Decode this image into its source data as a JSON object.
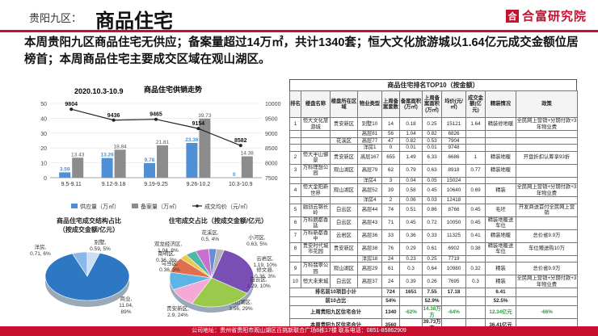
{
  "header": {
    "region": "贵阳九区：",
    "title": "商品住宅",
    "brand_logo": "合",
    "brand_name": "合富研究院"
  },
  "summary": "本周贵阳九区商品住宅无供应；备案量超过14万㎡，共计1340套；恒大文化旅游城以1.64亿元成交金额位居榜首；本周商品住宅主要成交区域在观山湖区。",
  "colors": {
    "brand": "#c8102e",
    "supply": "#4e8fd6",
    "sales": "#8c8c8c",
    "price": "#222222"
  },
  "bar_chart": {
    "title": "商品住宅供销走势",
    "date_label": "2020.10.3-10.9",
    "legend": {
      "supply": "供应量（万㎡）",
      "sales": "备案量（万㎡）",
      "price": "成交均价（元/㎡）"
    }
  },
  "pie_left": {
    "title_line1": "商品住宅成交结构占比",
    "title_line2": "（按成交金额/亿元）"
  },
  "pie_right": {
    "title": "住宅成交占比（按成交金额/亿元）"
  },
  "chart_data": [
    {
      "type": "bar",
      "title": "商品住宅供销走势",
      "categories": [
        "9.5-9.11",
        "9.12-9.18",
        "9.19-9.25",
        "9.26-10.2",
        "10.3-10.9"
      ],
      "series": [
        {
          "name": "供应量（万㎡）",
          "values": [
            3.59,
            13.26,
            9.78,
            23.36,
            0
          ],
          "labels": [
            "3.59",
            "13.26",
            "9.78",
            "23.36",
            "0"
          ]
        },
        {
          "name": "备案量（万㎡）",
          "values": [
            13.43,
            18.84,
            21.81,
            39.73,
            14.38
          ],
          "labels": [
            "13.43",
            "18.84",
            "21.81",
            "39.73",
            "14.38"
          ]
        },
        {
          "name": "成交均价（元/㎡）",
          "values": [
            9804,
            9436,
            9465,
            9154,
            8582
          ],
          "labels": [
            "9804",
            "9436",
            "9465",
            "9154",
            "8582"
          ],
          "axis": "right"
        }
      ],
      "yticks_left": [
        "0",
        "10",
        "20",
        "30",
        "40",
        "50"
      ],
      "yticks_right": [
        "7500",
        "8000",
        "8500",
        "9000",
        "9500",
        "10000"
      ],
      "ylim_left": [
        0,
        50
      ],
      "ylim_right": [
        7500,
        10000
      ]
    },
    {
      "type": "pie",
      "title": "商品住宅成交结构占比（按成交金额/亿元）",
      "slices": [
        {
          "name": "商业",
          "label_line1": "商业,",
          "label_line2": "11.04,",
          "label_line3": "89%",
          "value": 11.04,
          "color": "#2e78c3"
        },
        {
          "name": "洋房",
          "label_line1": "洋房,",
          "label_line2": "0.71, 6%",
          "value": 0.71,
          "color": "#8bb8e8"
        },
        {
          "name": "别墅",
          "label_line1": "别墅,",
          "label_line2": "0.59, 5%",
          "value": 0.59,
          "color": "#c9dff5"
        }
      ]
    },
    {
      "type": "pie",
      "title": "住宅成交占比（按成交金额/亿元）",
      "slices": [
        {
          "name": "观山湖区",
          "label_line1": "观山湖区,",
          "label_line2": "3.56, 29%",
          "value": 3.56,
          "color": "#7a4fb5"
        },
        {
          "name": "贵安新区",
          "label_line1": "贵安新区,",
          "label_line2": "2.9, 24%",
          "value": 2.9,
          "color": "#9bc94b"
        },
        {
          "name": "白云区",
          "label_line1": "白云区,",
          "label_line2": "1.29, 10%",
          "value": 1.29,
          "color": "#f4a9d6"
        },
        {
          "name": "云岩区",
          "label_line1": "云岩区,",
          "label_line2": "1.19, 10%",
          "value": 1.19,
          "color": "#5ab4e6"
        },
        {
          "name": "双龙经济区",
          "label_line1": "双龙经济区,",
          "label_line2": "1.04, 8%",
          "value": 1.04,
          "color": "#e06f4e"
        },
        {
          "name": "乌当区",
          "label_line1": "乌当区,",
          "label_line2": "0.36, 3%",
          "value": 0.36,
          "color": "#f2c84b"
        },
        {
          "name": "花溪区",
          "label_line1": "花溪区,",
          "label_line2": "0.5, 4%",
          "value": 0.5,
          "color": "#4cb8a9"
        },
        {
          "name": "小河区",
          "label_line1": "小河区,",
          "label_line2": "0.63, 5%",
          "value": 0.63,
          "color": "#c96fd0"
        },
        {
          "name": "南明区",
          "label_line1": "南明区,",
          "label_line2": "0.36, 3%",
          "value": 0.36,
          "color": "#6a8bd6"
        },
        {
          "name": "修文县",
          "label_line1": "修文县,",
          "label_line2": "0.36, 3%",
          "value": 0.36,
          "color": "#b5b5b5"
        }
      ]
    }
  ],
  "table": {
    "title": "商品住宅排名TOP10（按金额）",
    "headers": [
      "排名",
      "楼盘名称",
      "楼盘所在区域",
      "物业类型",
      "上周备案套数",
      "备案面积(万㎡)",
      "上周备案面积(万㎡)",
      "均价(元/㎡)",
      "成交金额(亿元)",
      "精装情况",
      "政策"
    ],
    "rows": [
      [
        "1",
        "恒大文化旅游城",
        "贵安新区",
        "别墅10",
        "14",
        "0.18",
        "0.25",
        "15121",
        "1.64",
        "精装修地暖",
        "全民网上营销+分期付款+3年物业费"
      ],
      [
        "",
        "",
        "",
        "高层81",
        "56",
        "1.04",
        "0.82",
        "6826",
        "",
        "",
        ""
      ],
      [
        "",
        "",
        "花溪区",
        "高层77",
        "47",
        "0.82",
        "0.53",
        "7904",
        "",
        "",
        ""
      ],
      [
        "",
        "",
        "",
        "洋房1",
        "0",
        "0.01",
        "0.01",
        "9748",
        "",
        "",
        ""
      ],
      [
        "2",
        "恒大半山御景",
        "贵安新区",
        "高层167",
        "655",
        "1.49",
        "6.33",
        "6686",
        "1",
        "精装地暖",
        "开盘折扣认筹享93折"
      ],
      [
        "3",
        "万科理想公园",
        "观山湖区",
        "高层79",
        "62",
        "0.79",
        "0.63",
        "8918",
        "0.77",
        "精装地暖",
        ""
      ],
      [
        "",
        "",
        "",
        "洋房4",
        "3",
        "0.04",
        "0.05",
        "15024",
        "",
        "",
        ""
      ],
      [
        "4",
        "恒大金阳新世界",
        "观山湖区",
        "高层52",
        "39",
        "0.58",
        "0.45",
        "10640",
        "0.69",
        "精装",
        "全民网上营销+分期付款+3年物业费"
      ],
      [
        "",
        "",
        "",
        "洋房4",
        "2",
        "0.06",
        "0.03",
        "12418",
        "",
        "",
        ""
      ],
      [
        "5",
        "融创云锦长岭",
        "白云区",
        "高层44",
        "74",
        "0.51",
        "0.86",
        "8766",
        "0.45",
        "毛坯",
        "开发商送首付全民网上营销"
      ],
      [
        "6",
        "万科朗都香廷",
        "白云区",
        "高层43",
        "71",
        "0.45",
        "0.72",
        "10050",
        "0.45",
        "精装地暖送车位",
        ""
      ],
      [
        "7",
        "万科新都香中",
        "云岩区",
        "高层36",
        "33",
        "0.36",
        "0.33",
        "11325",
        "0.41",
        "精装地暖",
        "总价省9.9万"
      ],
      [
        "8",
        "贵安时代城市花园",
        "贵安新区",
        "高层38",
        "76",
        "0.29",
        "0.61",
        "6902",
        "0.38",
        "精装地暖送车位",
        "车位赠送购10万"
      ],
      [
        "",
        "",
        "",
        "洋房18",
        "24",
        "0.23",
        "0.25",
        "7719",
        "",
        "",
        ""
      ],
      [
        "9",
        "万科翡翠公园",
        "观山湖区",
        "高层29",
        "61",
        "0.3",
        "0.64",
        "10980",
        "0.32",
        "精装",
        "总价省9.9万"
      ],
      [
        "10",
        "恒大未来城",
        "白云区",
        "高层37",
        "24",
        "0.39",
        "0.26",
        "7695",
        "0.3",
        "精装",
        "全民网上营销+分期付款+3年物业费"
      ]
    ],
    "summary_rows": [
      [
        "排名前10项目小计",
        "724",
        "1651",
        "7.55",
        "17.18",
        "",
        "6.41",
        "",
        ""
      ],
      [
        "前10占比",
        "54%",
        "",
        "52.9%",
        "",
        "",
        "52.5%",
        "",
        ""
      ],
      [
        "上周贵阳九区住宅合计",
        "1340",
        "-62%",
        "14.38万方",
        "-64%",
        "",
        "12.34亿元",
        "-66%",
        ""
      ],
      [
        "本周贵阳九区住宅合计",
        "3560",
        "",
        "39.73万方",
        "",
        "",
        "36.41亿元",
        "",
        ""
      ]
    ]
  },
  "footer": "公司地址：贵州省贵阳市观山湖区百挑新联合广场8栋17楼    联系电话：0851-85862909"
}
